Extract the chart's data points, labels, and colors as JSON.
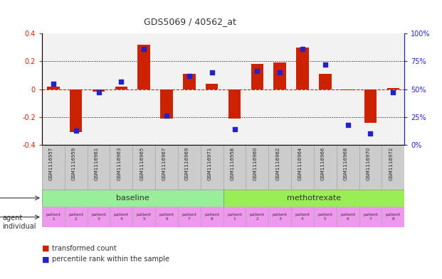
{
  "title": "GDS5069 / 40562_at",
  "gsm_labels": [
    "GSM1116957",
    "GSM1116959",
    "GSM1116961",
    "GSM1116963",
    "GSM1116965",
    "GSM1116967",
    "GSM1116969",
    "GSM1116971",
    "GSM1116958",
    "GSM1116960",
    "GSM1116962",
    "GSM1116964",
    "GSM1116966",
    "GSM1116968",
    "GSM1116970",
    "GSM1116972"
  ],
  "bar_values": [
    0.02,
    -0.31,
    -0.02,
    0.02,
    0.32,
    -0.21,
    0.11,
    0.04,
    -0.21,
    0.18,
    0.19,
    0.3,
    0.11,
    -0.01,
    -0.24,
    0.01
  ],
  "percentile_values": [
    55,
    13,
    47,
    57,
    86,
    26,
    62,
    65,
    14,
    66,
    65,
    86,
    72,
    18,
    10,
    47
  ],
  "ylim": [
    -0.4,
    0.4
  ],
  "yticks_left": [
    -0.4,
    -0.2,
    0.0,
    0.2,
    0.4
  ],
  "ytick_labels_left": [
    "-0.4",
    "-0.2",
    "0",
    "0.2",
    "0.4"
  ],
  "yticks_right": [
    0,
    25,
    50,
    75,
    100
  ],
  "ytick_labels_right": [
    "0%",
    "25%",
    "50%",
    "75%",
    "100%"
  ],
  "bar_color": "#cc2200",
  "dot_color": "#2222cc",
  "hline_color": "#cc2200",
  "gridline_color": "#000000",
  "baseline_color": "#99ee99",
  "methotrexate_color": "#99ee55",
  "individual_color": "#ee99ee",
  "gsm_bg_color": "#cccccc",
  "agent_label": "agent",
  "individual_label": "individual",
  "baseline_label": "baseline",
  "methotrexate_label": "methotrexate",
  "legend_bar_label": "transformed count",
  "legend_dot_label": "percentile rank within the sample",
  "patient_labels": [
    "patient\n1",
    "patient\n2",
    "patient\n3",
    "patient\n4",
    "patient\n5",
    "patient\n6",
    "patient\n7",
    "patient\n8"
  ],
  "background_color": "#ffffff"
}
